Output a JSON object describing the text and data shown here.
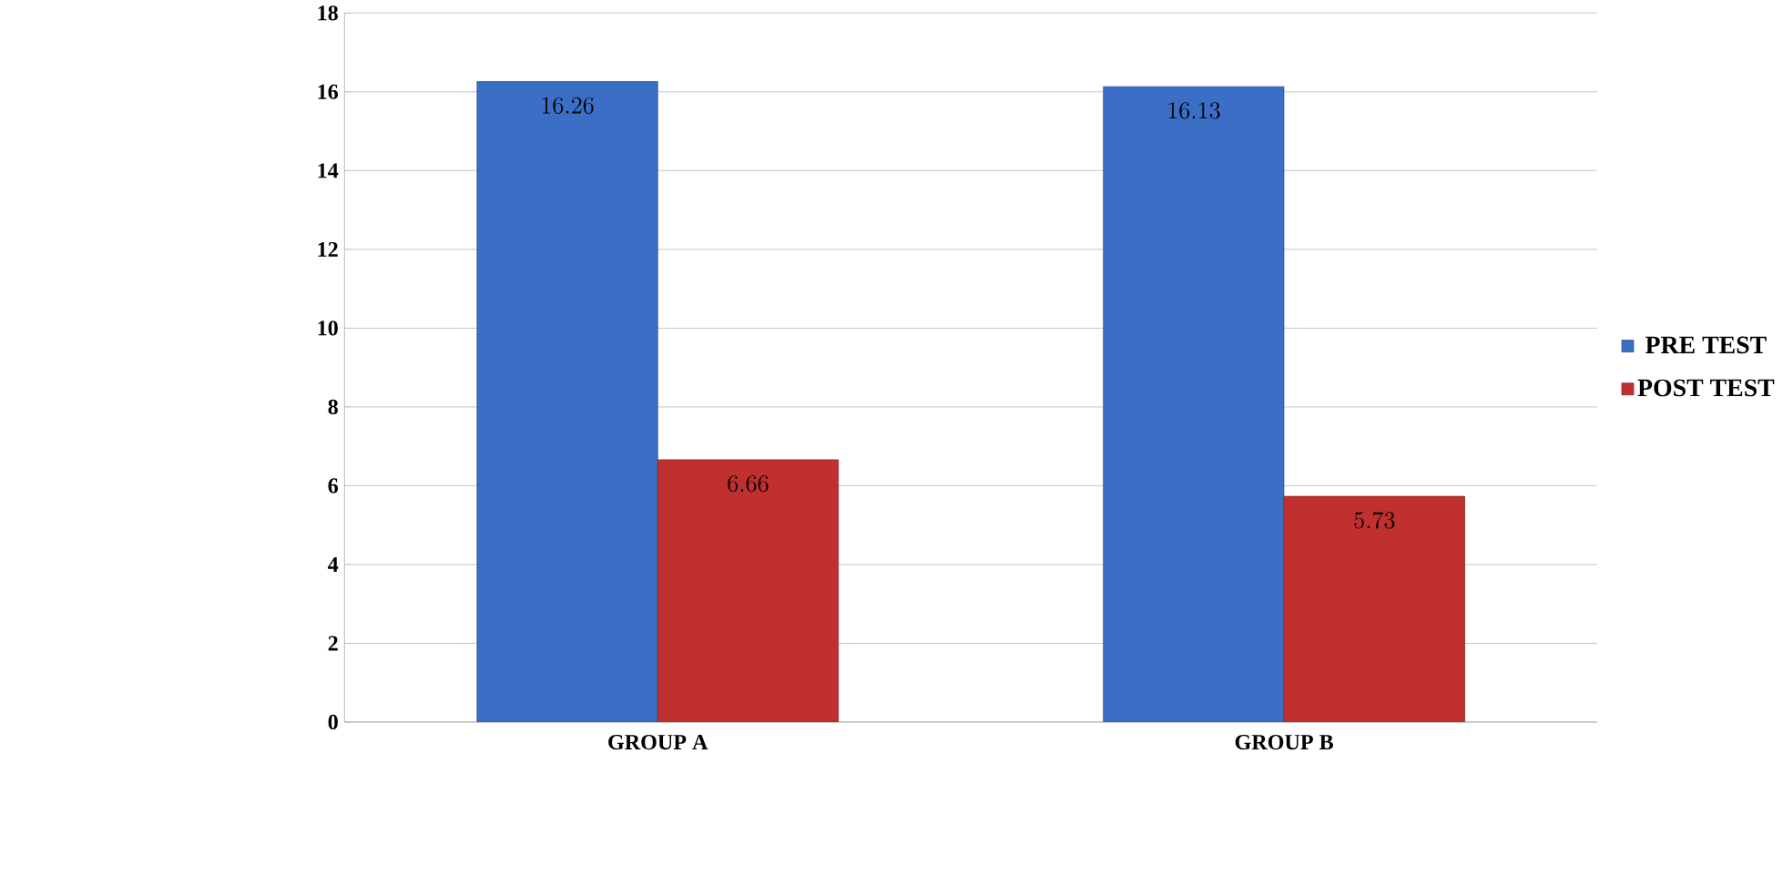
{
  "chart_data": {
    "type": "bar",
    "categories": [
      "GROUP A",
      "GROUP B"
    ],
    "series": [
      {
        "name": "PRE TEST",
        "color": "#3b6fc6",
        "values": [
          16.26,
          16.13
        ]
      },
      {
        "name": "POST TEST",
        "color": "#c0302e",
        "values": [
          6.66,
          5.73
        ]
      }
    ],
    "ylim": [
      0,
      18
    ],
    "yticks": [
      0,
      2,
      4,
      6,
      8,
      10,
      12,
      14,
      16,
      18
    ],
    "grid": "y",
    "legend": "right",
    "data_labels": true
  }
}
